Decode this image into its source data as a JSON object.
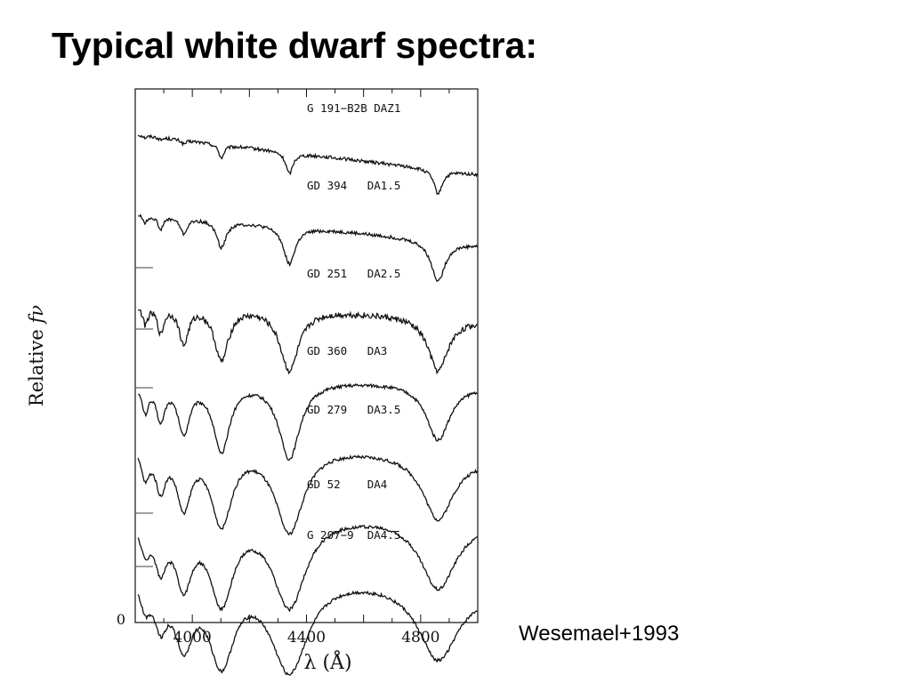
{
  "slide": {
    "title": "Typical white dwarf spectra:",
    "citation": "Wesemael+1993"
  },
  "chart_data": {
    "type": "line",
    "title": "",
    "xlabel": "λ (Å)",
    "ylabel_prefix": "Relative",
    "ylabel_symbol": "fν",
    "xlim": [
      3800,
      5000
    ],
    "ylim": [
      0,
      20
    ],
    "x_ticks": [
      4000,
      4400,
      4800
    ],
    "y_tick_labels": [
      "0"
    ],
    "grid": false,
    "legend": "none",
    "line_color": "#111111",
    "balmer_lines_A": [
      3835,
      3889,
      3970,
      4102,
      4340,
      4861
    ],
    "series": [
      {
        "name": "G 191−B2B DAZ1",
        "continuum_start": 18.3,
        "continuum_end": 16.8,
        "zero_mark": null,
        "line_depths": [
          0.08,
          0.1,
          0.15,
          0.5,
          0.8,
          0.9
        ],
        "line_widths_A": [
          8,
          8,
          10,
          12,
          15,
          18
        ]
      },
      {
        "name": "GD 394   DA1.5",
        "continuum_start": 15.4,
        "continuum_end": 14.2,
        "zero_mark": 13.3,
        "line_depths": [
          0.3,
          0.5,
          0.6,
          1.0,
          1.4,
          1.5
        ],
        "line_widths_A": [
          10,
          12,
          15,
          20,
          25,
          30
        ]
      },
      {
        "name": "GD 251   DA2.5",
        "continuum_start": 12.1,
        "continuum_end": 11.4,
        "zero_mark": 11.0,
        "line_depths": [
          0.7,
          1.0,
          1.4,
          2.0,
          2.3,
          2.0
        ],
        "line_widths_A": [
          12,
          14,
          20,
          30,
          40,
          42
        ]
      },
      {
        "name": "GD 360   DA3",
        "continuum_start": 9.2,
        "continuum_end": 9.0,
        "zero_mark": 8.8,
        "line_depths": [
          1.0,
          1.3,
          1.8,
          2.6,
          2.9,
          2.1
        ],
        "line_widths_A": [
          15,
          18,
          25,
          35,
          45,
          50
        ]
      },
      {
        "name": "GD 279   DA3.5",
        "continuum_start": 7.0,
        "continuum_end": 6.3,
        "zero_mark": null,
        "line_depths": [
          1.1,
          1.5,
          2.2,
          2.9,
          3.2,
          2.4
        ],
        "line_widths_A": [
          18,
          22,
          30,
          45,
          60,
          65
        ]
      },
      {
        "name": "GD 52    DA4",
        "continuum_start": 4.2,
        "continuum_end": 4.0,
        "zero_mark": 4.1,
        "line_depths": [
          1.0,
          1.6,
          2.3,
          3.1,
          3.4,
          2.6
        ],
        "line_widths_A": [
          20,
          25,
          35,
          50,
          70,
          75
        ]
      },
      {
        "name": "G 207−9  DA4.5",
        "continuum_start": 2.3,
        "continuum_end": 1.5,
        "zero_mark": 2.1,
        "line_depths": [
          1.0,
          1.6,
          2.4,
          3.2,
          3.6,
          2.8
        ],
        "line_widths_A": [
          22,
          28,
          40,
          55,
          80,
          85
        ]
      }
    ]
  }
}
